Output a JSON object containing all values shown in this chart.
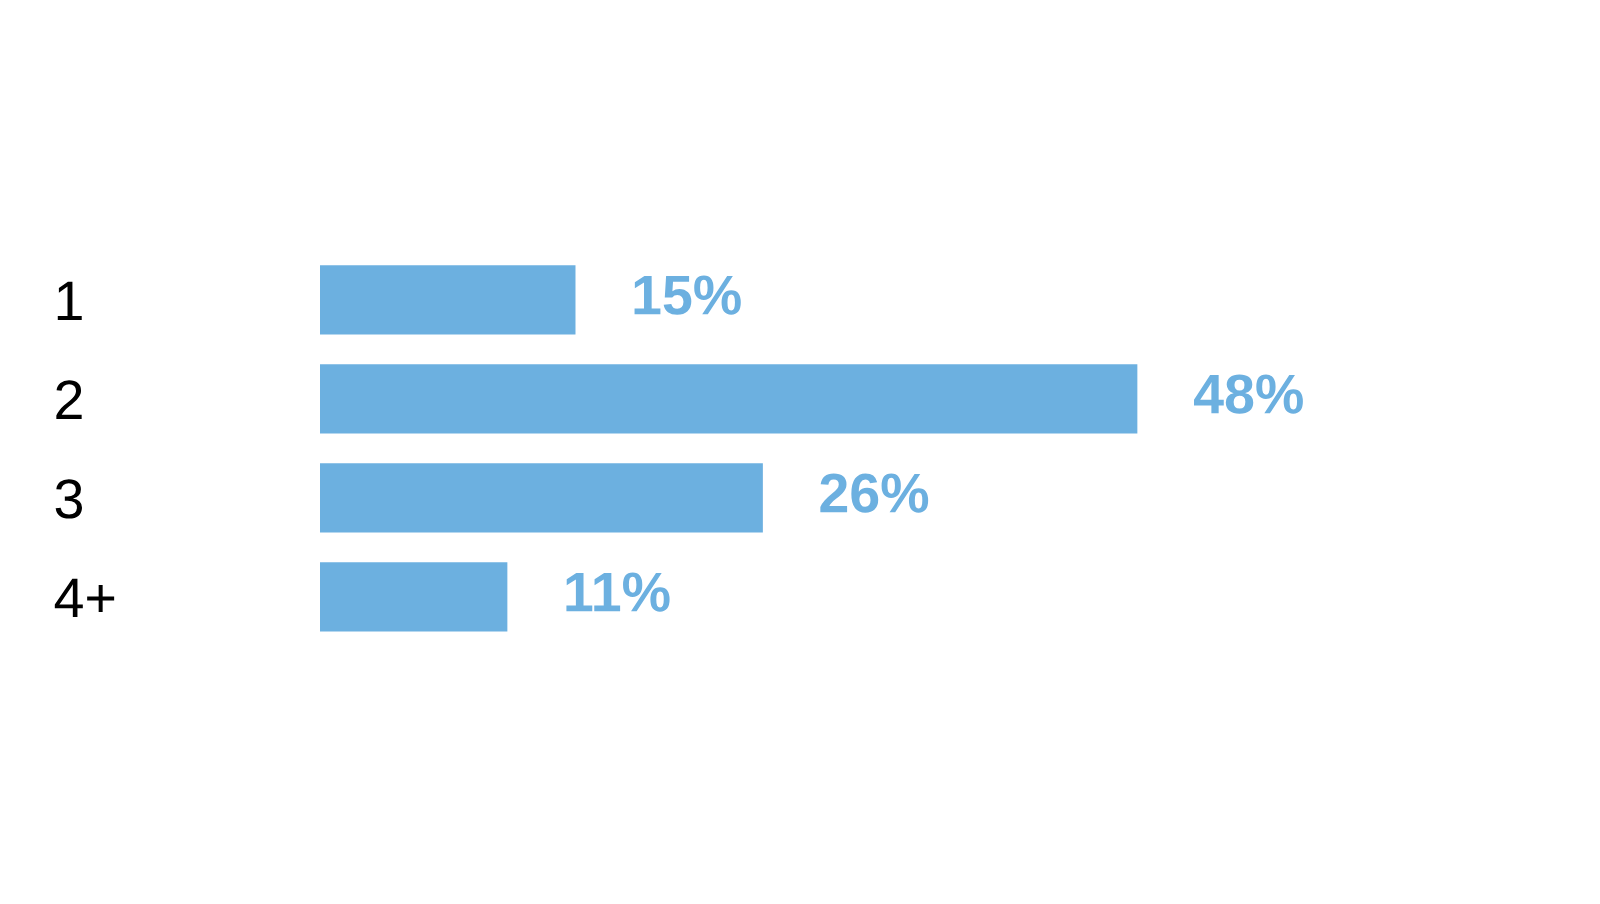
{
  "chart_data": {
    "type": "bar",
    "orientation": "horizontal",
    "categories": [
      "1",
      "2",
      "3",
      "4+"
    ],
    "values": [
      15,
      48,
      26,
      11
    ],
    "value_labels": [
      "15%",
      "48%",
      "26%",
      "11%"
    ],
    "color": "#6cb0e0",
    "grid": false,
    "legend": false
  }
}
